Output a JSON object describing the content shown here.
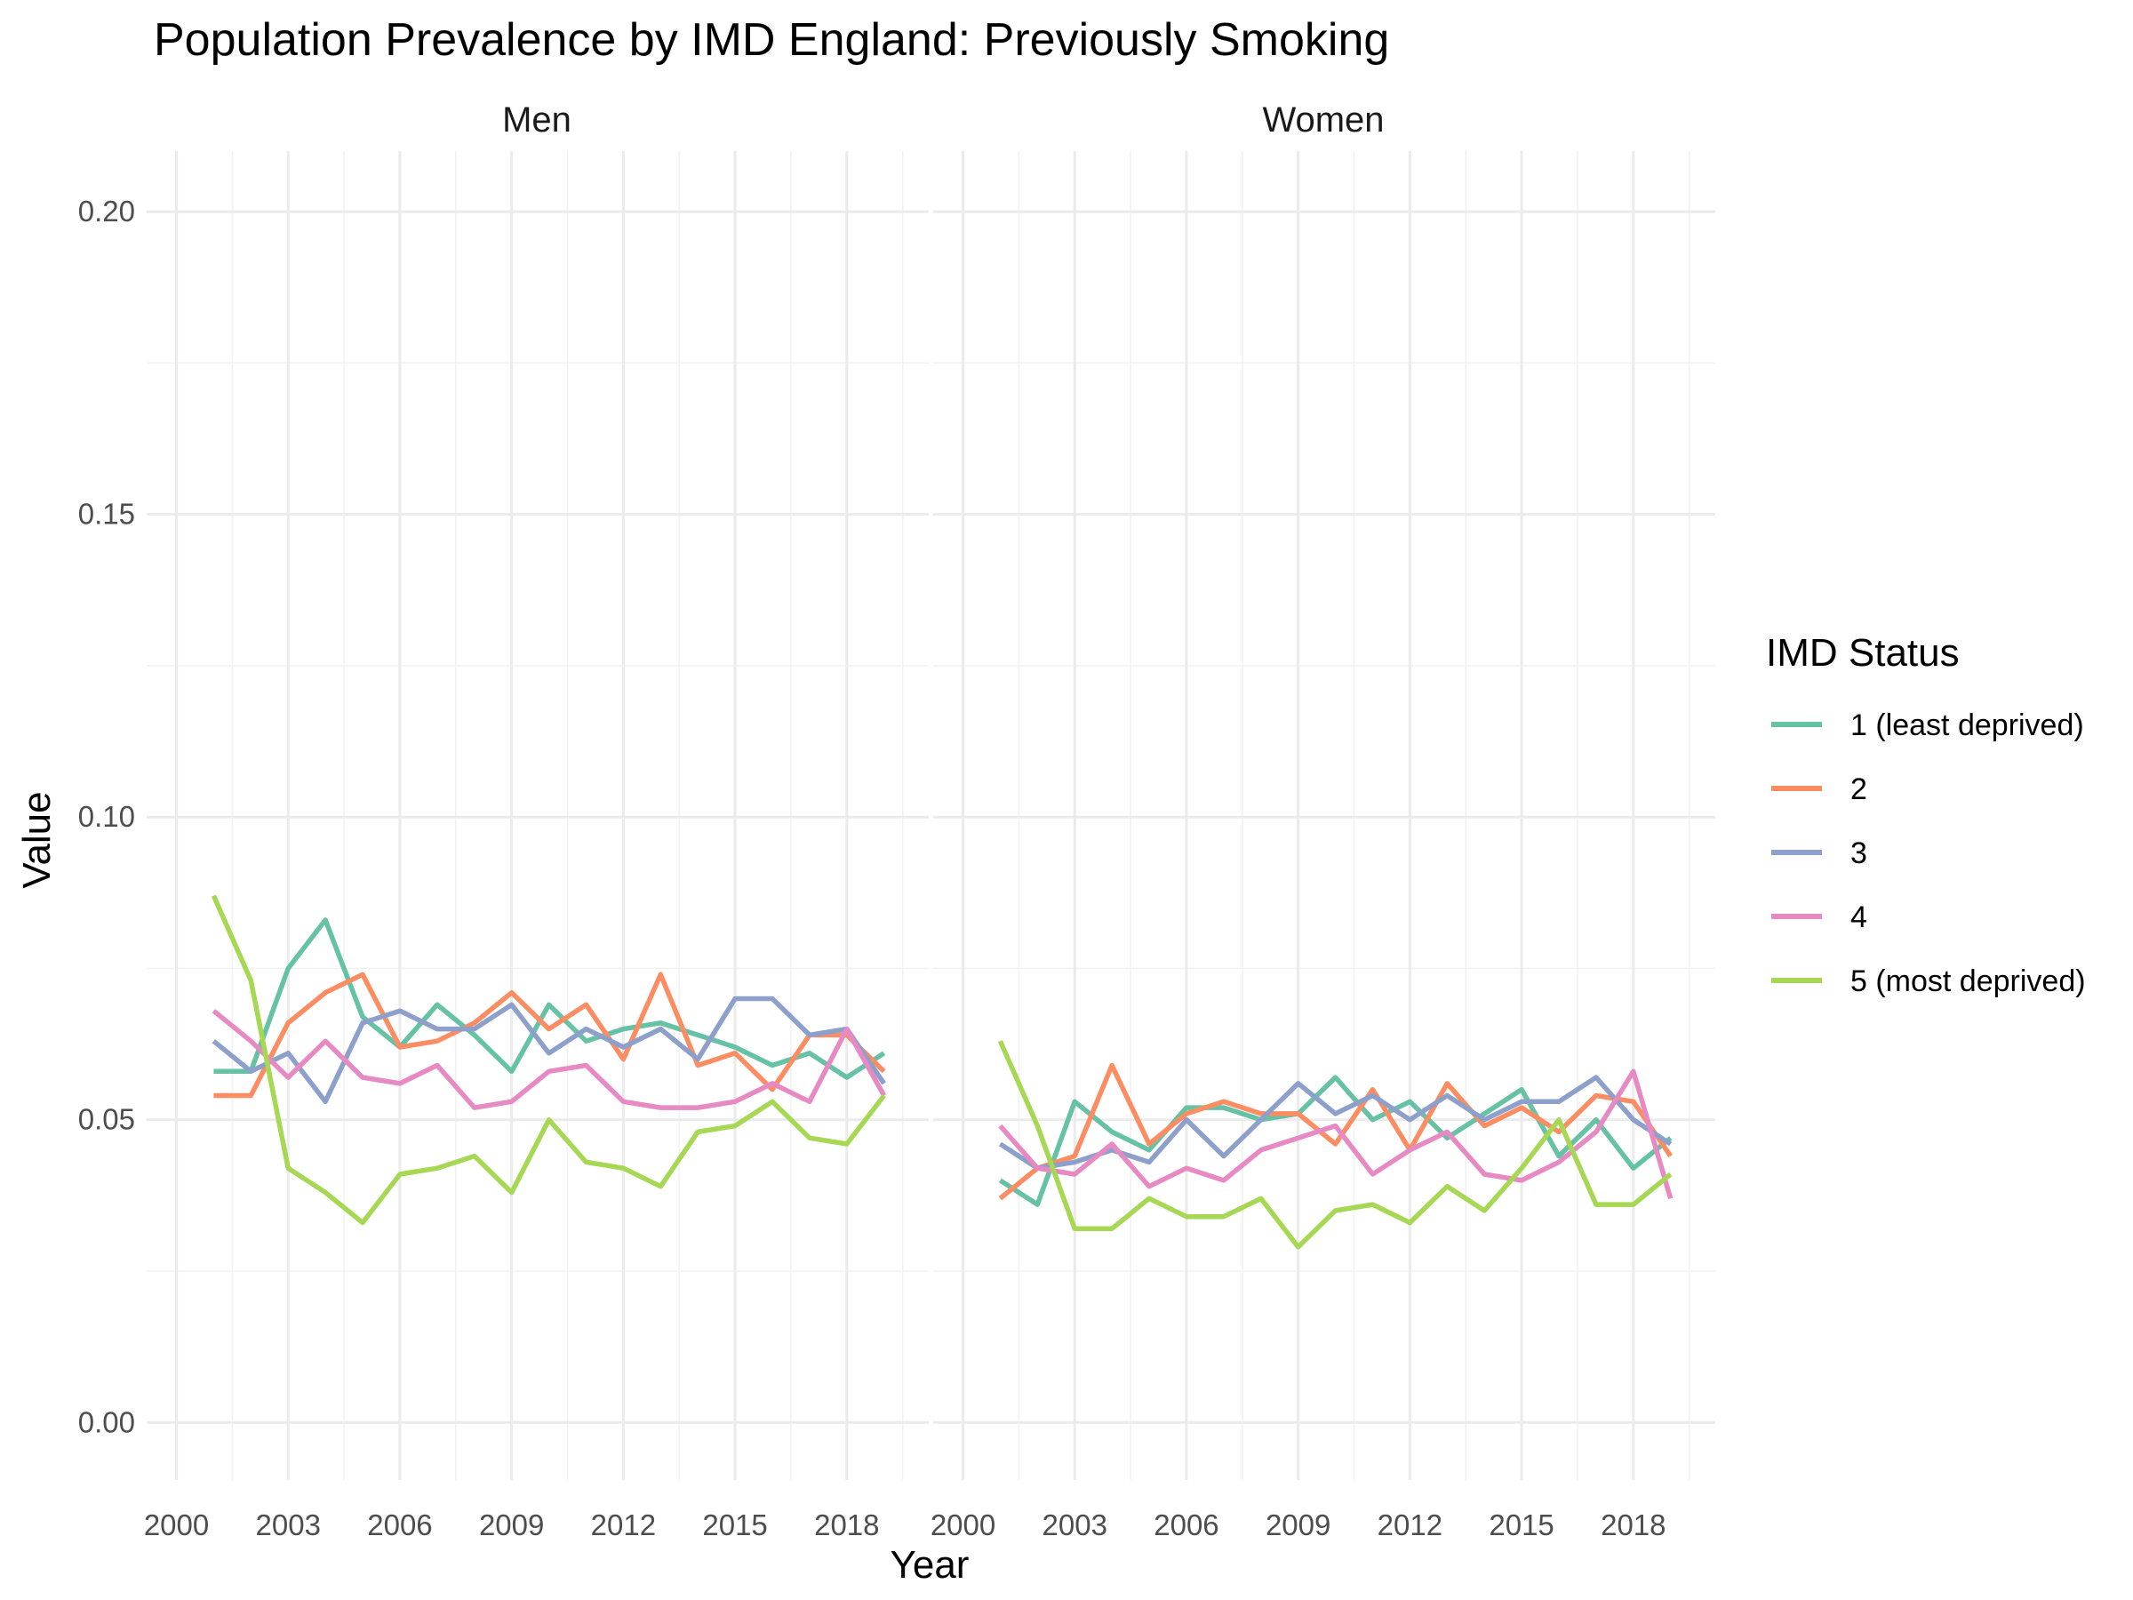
{
  "chart_data": {
    "type": "line",
    "title": "Population Prevalence by IMD England: Previously Smoking",
    "xlabel": "Year",
    "ylabel": "Value",
    "x_ticks": [
      2000,
      2003,
      2006,
      2009,
      2012,
      2015,
      2018
    ],
    "y_ticks": [
      "0.00",
      "0.05",
      "0.10",
      "0.15",
      "0.20"
    ],
    "xlim": [
      1999.2,
      2020.2
    ],
    "ylim": [
      -0.0095,
      0.21
    ],
    "grid": true,
    "legend": {
      "title": "IMD Status",
      "position": "right",
      "entries": [
        "1 (least deprived)",
        "2",
        "3",
        "4",
        "5 (most deprived)"
      ]
    },
    "colors": [
      "#66c2a5",
      "#fc8d62",
      "#8da0cb",
      "#e78ac3",
      "#a6d854"
    ],
    "x": [
      2001,
      2002,
      2003,
      2004,
      2005,
      2006,
      2007,
      2008,
      2009,
      2010,
      2011,
      2012,
      2013,
      2014,
      2015,
      2016,
      2017,
      2018,
      2019
    ],
    "panels": [
      {
        "label": "Men",
        "series": [
          {
            "name": "1 (least deprived)",
            "values": [
              0.058,
              0.058,
              0.075,
              0.083,
              0.067,
              0.062,
              0.069,
              0.064,
              0.058,
              0.069,
              0.063,
              0.065,
              0.066,
              0.064,
              0.062,
              0.059,
              0.061,
              0.057,
              0.061
            ]
          },
          {
            "name": "2",
            "values": [
              0.054,
              0.054,
              0.066,
              0.071,
              0.074,
              0.062,
              0.063,
              0.066,
              0.071,
              0.065,
              0.069,
              0.06,
              0.074,
              0.059,
              0.061,
              0.055,
              0.064,
              0.064,
              0.058
            ]
          },
          {
            "name": "3",
            "values": [
              0.063,
              0.058,
              0.061,
              0.053,
              0.066,
              0.068,
              0.065,
              0.065,
              0.069,
              0.061,
              0.065,
              0.062,
              0.065,
              0.06,
              0.07,
              0.07,
              0.064,
              0.065,
              0.056
            ]
          },
          {
            "name": "4",
            "values": [
              0.068,
              0.063,
              0.057,
              0.063,
              0.057,
              0.056,
              0.059,
              0.052,
              0.053,
              0.058,
              0.059,
              0.053,
              0.052,
              0.052,
              0.053,
              0.056,
              0.053,
              0.065,
              0.054
            ]
          },
          {
            "name": "5 (most deprived)",
            "values": [
              0.087,
              0.073,
              0.042,
              0.038,
              0.033,
              0.041,
              0.042,
              0.044,
              0.038,
              0.05,
              0.043,
              0.042,
              0.039,
              0.048,
              0.049,
              0.053,
              0.047,
              0.046,
              0.054
            ]
          }
        ]
      },
      {
        "label": "Women",
        "series": [
          {
            "name": "1 (least deprived)",
            "values": [
              0.04,
              0.036,
              0.053,
              0.048,
              0.045,
              0.052,
              0.052,
              0.05,
              0.051,
              0.057,
              0.05,
              0.053,
              0.047,
              0.051,
              0.055,
              0.044,
              0.05,
              0.042,
              0.047
            ]
          },
          {
            "name": "2",
            "values": [
              0.037,
              0.042,
              0.044,
              0.059,
              0.046,
              0.051,
              0.053,
              0.051,
              0.051,
              0.046,
              0.055,
              0.045,
              0.056,
              0.049,
              0.052,
              0.048,
              0.054,
              0.053,
              0.044
            ]
          },
          {
            "name": "3",
            "values": [
              0.046,
              0.042,
              0.043,
              0.045,
              0.043,
              0.05,
              0.044,
              0.05,
              0.056,
              0.051,
              0.054,
              0.05,
              0.054,
              0.05,
              0.053,
              0.053,
              0.057,
              0.05,
              0.046
            ]
          },
          {
            "name": "4",
            "values": [
              0.049,
              0.042,
              0.041,
              0.046,
              0.039,
              0.042,
              0.04,
              0.045,
              0.047,
              0.049,
              0.041,
              0.045,
              0.048,
              0.041,
              0.04,
              0.043,
              0.048,
              0.058,
              0.037
            ]
          },
          {
            "name": "5 (most deprived)",
            "values": [
              0.063,
              0.049,
              0.032,
              0.032,
              0.037,
              0.034,
              0.034,
              0.037,
              0.029,
              0.035,
              0.036,
              0.033,
              0.039,
              0.035,
              0.042,
              0.05,
              0.036,
              0.036,
              0.041
            ]
          }
        ]
      }
    ]
  }
}
